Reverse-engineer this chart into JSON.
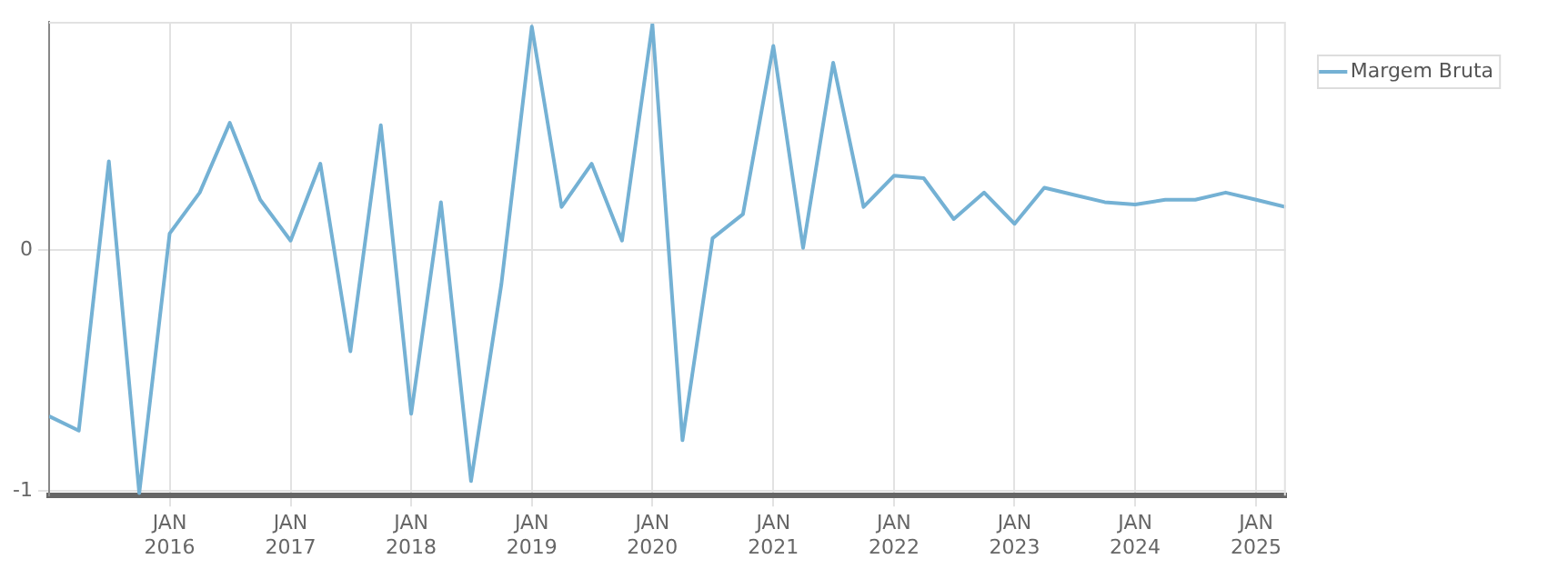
{
  "chart_data": {
    "type": "line",
    "x": [
      "2015-01",
      "2015-04",
      "2015-07",
      "2015-10",
      "2016-01",
      "2016-04",
      "2016-07",
      "2016-10",
      "2017-01",
      "2017-04",
      "2017-07",
      "2017-10",
      "2018-01",
      "2018-04",
      "2018-07",
      "2018-10",
      "2019-01",
      "2019-04",
      "2019-07",
      "2019-10",
      "2020-01",
      "2020-04",
      "2020-07",
      "2020-10",
      "2021-01",
      "2021-04",
      "2021-07",
      "2021-10",
      "2022-01",
      "2022-04",
      "2022-07",
      "2022-10",
      "2023-01",
      "2023-04",
      "2023-07",
      "2023-10",
      "2024-01",
      "2024-04",
      "2024-07",
      "2024-10",
      "2025-01",
      "2025-04"
    ],
    "series": [
      {
        "name": "Margem Bruta",
        "color": "#74b1d4",
        "values": [
          -0.69,
          -0.75,
          0.37,
          -1.01,
          0.07,
          0.24,
          0.53,
          0.21,
          0.04,
          0.36,
          -0.42,
          0.52,
          -0.68,
          0.2,
          -0.96,
          -0.14,
          0.93,
          0.18,
          0.36,
          0.04,
          0.94,
          -0.79,
          0.05,
          0.15,
          0.85,
          0.01,
          0.78,
          0.18,
          0.31,
          0.3,
          0.13,
          0.24,
          0.11,
          0.26,
          0.23,
          0.2,
          0.19,
          0.21,
          0.21,
          0.24,
          0.21,
          0.18
        ]
      }
    ],
    "xlim": [
      "2015-01",
      "2025-04"
    ],
    "xticks": [
      {
        "value": "2016-01",
        "label": "JAN\n2016"
      },
      {
        "value": "2017-01",
        "label": "JAN\n2017"
      },
      {
        "value": "2018-01",
        "label": "JAN\n2018"
      },
      {
        "value": "2019-01",
        "label": "JAN\n2019"
      },
      {
        "value": "2020-01",
        "label": "JAN\n2020"
      },
      {
        "value": "2021-01",
        "label": "JAN\n2021"
      },
      {
        "value": "2022-01",
        "label": "JAN\n2022"
      },
      {
        "value": "2023-01",
        "label": "JAN\n2023"
      },
      {
        "value": "2024-01",
        "label": "JAN\n2024"
      },
      {
        "value": "2025-01",
        "label": "JAN\n2025"
      }
    ],
    "ylim": [
      -1.02,
      0.95
    ],
    "yticks": [
      -1,
      0
    ],
    "grid": true,
    "legend": "top right",
    "marker": "none",
    "line_style": "solid"
  }
}
